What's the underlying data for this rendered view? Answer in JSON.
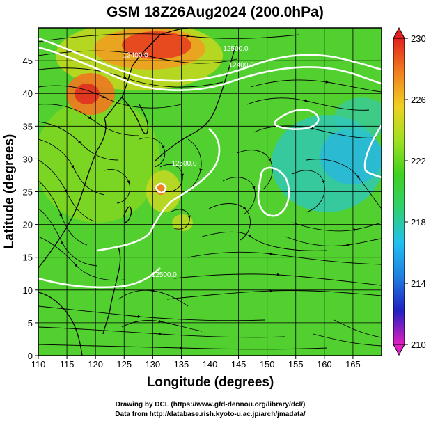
{
  "chart_data": {
    "type": "heatmap",
    "title": "GSM 18Z26Aug2024 (200.0hPa)",
    "xlabel": "Longitude (degrees)",
    "ylabel": "Latitude  (degrees)",
    "xlim": [
      110,
      170
    ],
    "ylim": [
      0,
      50
    ],
    "xticks": [
      "110",
      "115",
      "120",
      "125",
      "130",
      "135",
      "140",
      "145",
      "150",
      "155",
      "160",
      "165"
    ],
    "yticks": [
      "0",
      "5",
      "10",
      "15",
      "20",
      "25",
      "30",
      "35",
      "40",
      "45"
    ],
    "colorbar": {
      "range": [
        210,
        230
      ],
      "ticks": [
        "210",
        "214",
        "218",
        "222",
        "226",
        "230"
      ],
      "colors": [
        "#e020c0",
        "#2020c0",
        "#2080e0",
        "#20c0f0",
        "#30d070",
        "#40d020",
        "#a0e020",
        "#f0d020",
        "#f08020",
        "#e02020"
      ]
    },
    "contours": [
      {
        "label": "12500.0",
        "lon": 144.5,
        "lat": 46.5
      },
      {
        "label": "12400.0",
        "lon": 145.5,
        "lat": 44.0
      },
      {
        "label": "12400.0",
        "lon": 127.0,
        "lat": 45.5
      },
      {
        "label": "12500.0",
        "lon": 135.5,
        "lat": 29.0
      },
      {
        "label": "12500.0",
        "lon": 132.0,
        "lat": 12.0
      }
    ],
    "credits": [
      "Drawing by DCL (https://www.gfd-dennou.org/library/dcl/)",
      "Data from http://database.rish.kyoto-u.ac.jp/arch/jmadata/"
    ]
  }
}
